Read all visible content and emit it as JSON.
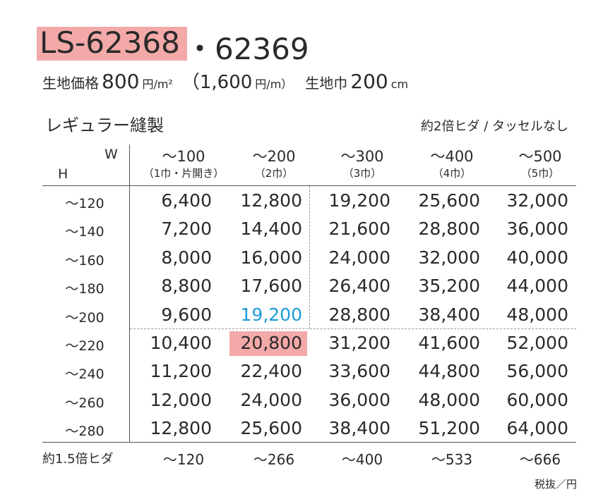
{
  "title": {
    "model": "LS-62368",
    "model2": "・62369"
  },
  "price_line": {
    "label": "生地価格",
    "price": "800",
    "price_unit": "円/m²",
    "price_alt": "（1,600",
    "price_alt_unit": "円/m）",
    "width_label": "生地巾",
    "width": "200",
    "width_unit": "cm"
  },
  "section": {
    "title": "レギュラー縫製",
    "note": "約2倍ヒダ / タッセルなし"
  },
  "table": {
    "w_label": "W",
    "h_label": "H",
    "columns": [
      {
        "range": "～100",
        "sub": "（1巾・片開き）"
      },
      {
        "range": "～200",
        "sub": "（2巾）"
      },
      {
        "range": "～300",
        "sub": "（3巾）"
      },
      {
        "range": "～400",
        "sub": "（4巾）"
      },
      {
        "range": "～500",
        "sub": "（5巾）"
      }
    ],
    "rows": [
      {
        "label": "～120",
        "values": [
          "6,400",
          "12,800",
          "19,200",
          "25,600",
          "32,000"
        ]
      },
      {
        "label": "～140",
        "values": [
          "7,200",
          "14,400",
          "21,600",
          "28,800",
          "36,000"
        ]
      },
      {
        "label": "～160",
        "values": [
          "8,000",
          "16,000",
          "24,000",
          "32,000",
          "40,000"
        ]
      },
      {
        "label": "～180",
        "values": [
          "8,800",
          "17,600",
          "26,400",
          "35,200",
          "44,000"
        ]
      },
      {
        "label": "～200",
        "values": [
          "9,600",
          "19,200",
          "28,800",
          "38,400",
          "48,000"
        ]
      },
      {
        "label": "～220",
        "values": [
          "10,400",
          "20,800",
          "31,200",
          "41,600",
          "52,000"
        ]
      },
      {
        "label": "～240",
        "values": [
          "11,200",
          "22,400",
          "33,600",
          "44,800",
          "56,000"
        ]
      },
      {
        "label": "～260",
        "values": [
          "12,000",
          "24,000",
          "36,000",
          "48,000",
          "60,000"
        ]
      },
      {
        "label": "～280",
        "values": [
          "12,800",
          "25,600",
          "38,400",
          "51,200",
          "64,000"
        ]
      }
    ],
    "footer": {
      "label": "約1.5倍ヒダ",
      "values": [
        "～120",
        "～266",
        "～400",
        "～533",
        "～666"
      ]
    }
  },
  "tax_note": "税抜／円"
}
